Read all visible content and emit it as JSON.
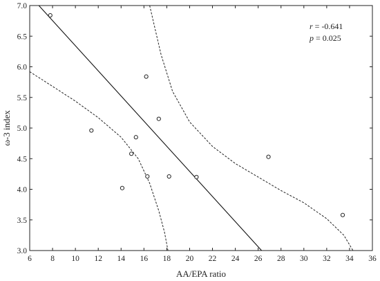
{
  "chart_data": {
    "type": "scatter",
    "title": "",
    "xlabel": "AA/EPA ratio",
    "ylabel": "ω-3 index",
    "xlim": [
      6,
      36
    ],
    "ylim": [
      3.0,
      7.0
    ],
    "x_ticks": [
      "6",
      "8",
      "10",
      "12",
      "14",
      "16",
      "18",
      "20",
      "22",
      "24",
      "26",
      "28",
      "30",
      "32",
      "34",
      "36"
    ],
    "y_ticks": [
      "3.0",
      "3.5",
      "4.0",
      "4.5",
      "5.0",
      "5.5",
      "6.0",
      "6.5",
      "7.0"
    ],
    "grid": false,
    "points": [
      {
        "x": 7.8,
        "y": 6.84
      },
      {
        "x": 11.4,
        "y": 4.96
      },
      {
        "x": 14.1,
        "y": 4.02
      },
      {
        "x": 14.9,
        "y": 4.58
      },
      {
        "x": 15.3,
        "y": 4.85
      },
      {
        "x": 16.2,
        "y": 5.84
      },
      {
        "x": 16.3,
        "y": 4.21
      },
      {
        "x": 17.3,
        "y": 5.15
      },
      {
        "x": 18.2,
        "y": 4.21
      },
      {
        "x": 20.6,
        "y": 4.2
      },
      {
        "x": 26.9,
        "y": 4.53
      },
      {
        "x": 33.4,
        "y": 3.58
      }
    ],
    "regression_line": [
      {
        "x": 6.8,
        "y": 7.0
      },
      {
        "x": 26.3,
        "y": 3.0
      }
    ],
    "upper_confidence_band": [
      {
        "x": 16.5,
        "y": 7.0
      },
      {
        "x": 17.5,
        "y": 6.2
      },
      {
        "x": 18.5,
        "y": 5.6
      },
      {
        "x": 20.0,
        "y": 5.1
      },
      {
        "x": 22.0,
        "y": 4.7
      },
      {
        "x": 24.0,
        "y": 4.42
      },
      {
        "x": 26.0,
        "y": 4.2
      },
      {
        "x": 28.0,
        "y": 3.98
      },
      {
        "x": 30.0,
        "y": 3.78
      },
      {
        "x": 32.0,
        "y": 3.52
      },
      {
        "x": 33.5,
        "y": 3.25
      },
      {
        "x": 34.3,
        "y": 3.0
      }
    ],
    "lower_confidence_band": [
      {
        "x": 6.0,
        "y": 5.92
      },
      {
        "x": 8.0,
        "y": 5.68
      },
      {
        "x": 10.0,
        "y": 5.44
      },
      {
        "x": 12.0,
        "y": 5.17
      },
      {
        "x": 14.0,
        "y": 4.85
      },
      {
        "x": 15.5,
        "y": 4.5
      },
      {
        "x": 16.5,
        "y": 4.1
      },
      {
        "x": 17.3,
        "y": 3.65
      },
      {
        "x": 17.8,
        "y": 3.3
      },
      {
        "x": 18.1,
        "y": 3.0
      }
    ],
    "annotations": {
      "r_symbol": "r",
      "r_value": " = -0.641",
      "p_symbol": "p",
      "p_value": " = 0.025"
    }
  }
}
